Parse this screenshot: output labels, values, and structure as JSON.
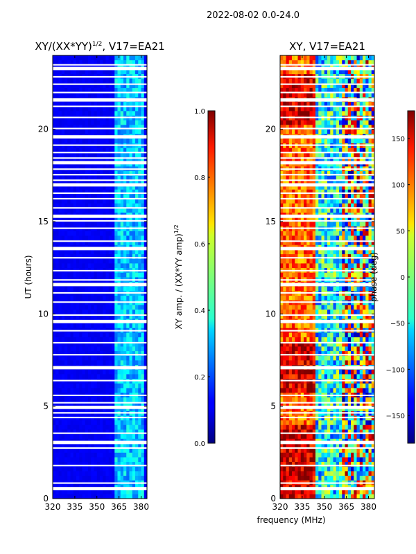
{
  "suptitle": "2022-08-02 0.0-24.0",
  "chart_data": [
    {
      "type": "heatmap",
      "title": "XY/(XX*YY)^1/2, V17=EA21",
      "title_main": "XY/(XX*YY)",
      "title_sup": "1/2",
      "title_tail": ", V17=EA21",
      "xlabel": "",
      "ylabel": "UT (hours)",
      "xlim": [
        320,
        384
      ],
      "ylim": [
        0,
        24
      ],
      "xticks": [
        "320",
        "335",
        "350",
        "365",
        "380"
      ],
      "yticks": [
        "0",
        "5",
        "10",
        "15",
        "20"
      ],
      "colorbar": {
        "label": "XY amp. / (XX*YY amp)^1/2",
        "label_main": "XY amp. / (XX*YY amp)",
        "label_sup": "1/2",
        "range": [
          0.0,
          1.0
        ],
        "ticks": [
          "0.0",
          "0.2",
          "0.4",
          "0.6",
          "0.8",
          "1.0"
        ],
        "colormap": "jet"
      },
      "description": "Normalized amplitude mostly low (~0.1) except band 362-382 MHz (~0.25-0.4)"
    },
    {
      "type": "heatmap",
      "title": "XY, V17=EA21",
      "xlabel": "frequency (MHz)",
      "ylabel": "",
      "xlim": [
        320,
        384
      ],
      "ylim": [
        0,
        24
      ],
      "xticks": [
        "320",
        "335",
        "350",
        "365",
        "380"
      ],
      "yticks": [
        "0",
        "5",
        "10",
        "15",
        "20"
      ],
      "colorbar": {
        "label": "phase (deg)",
        "range": [
          -180,
          180
        ],
        "ticks": [
          "−150",
          "−100",
          "−50",
          "0",
          "50",
          "100",
          "150"
        ],
        "colormap": "jet"
      }
    }
  ]
}
